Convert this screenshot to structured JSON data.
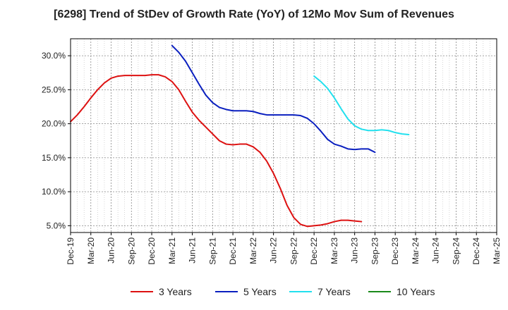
{
  "chart_data": {
    "type": "line",
    "title": "[6298]  Trend of StDev of Growth Rate (YoY) of 12Mo Mov Sum of Revenues",
    "xlabel": "",
    "ylabel": "",
    "ylim": [
      4.0,
      32.5
    ],
    "y_ticks": [
      5.0,
      10.0,
      15.0,
      20.0,
      25.0,
      30.0
    ],
    "y_tick_labels": [
      "5.0%",
      "10.0%",
      "15.0%",
      "20.0%",
      "25.0%",
      "30.0%"
    ],
    "x_tick_labels": [
      "Dec-19",
      "Mar-20",
      "Jun-20",
      "Sep-20",
      "Dec-20",
      "Mar-21",
      "Jun-21",
      "Sep-21",
      "Dec-21",
      "Mar-22",
      "Jun-22",
      "Sep-22",
      "Dec-22",
      "Mar-23",
      "Jun-23",
      "Sep-23",
      "Dec-23",
      "Mar-24",
      "Jun-24",
      "Sep-24",
      "Dec-24",
      "Mar-25"
    ],
    "grid": true,
    "legend_position": "bottom",
    "series": [
      {
        "name": "3 Years",
        "color": "#dd1111",
        "start_index": 0,
        "values": [
          20.3,
          21.3,
          22.5,
          23.8,
          25.0,
          26.0,
          26.7,
          27.0,
          27.1,
          27.1,
          27.1,
          27.1,
          27.2,
          27.2,
          26.9,
          26.2,
          25.0,
          23.3,
          21.7,
          20.5,
          19.5,
          18.5,
          17.5,
          17.0,
          16.9,
          17.0,
          17.0,
          16.6,
          15.8,
          14.5,
          12.7,
          10.5,
          8.0,
          6.2,
          5.2,
          4.9,
          5.0,
          5.1,
          5.3,
          5.6,
          5.8,
          5.8,
          5.7,
          5.6
        ]
      },
      {
        "name": "5 Years",
        "color": "#0a1fbf",
        "start_index": 15,
        "values": [
          31.5,
          30.5,
          29.2,
          27.5,
          25.8,
          24.2,
          23.1,
          22.4,
          22.1,
          21.9,
          21.9,
          21.9,
          21.8,
          21.5,
          21.3,
          21.3,
          21.3,
          21.3,
          21.3,
          21.2,
          20.8,
          20.0,
          18.9,
          17.7,
          17.0,
          16.7,
          16.3,
          16.2,
          16.3,
          16.3,
          15.8
        ]
      },
      {
        "name": "7 Years",
        "color": "#22e0ee",
        "start_index": 36,
        "values": [
          27.0,
          26.2,
          25.2,
          23.8,
          22.2,
          20.7,
          19.7,
          19.2,
          19.0,
          19.0,
          19.1,
          19.0,
          18.7,
          18.5,
          18.4
        ]
      },
      {
        "name": "10 Years",
        "color": "#1a8a1a",
        "start_index": 0,
        "values": []
      }
    ]
  }
}
